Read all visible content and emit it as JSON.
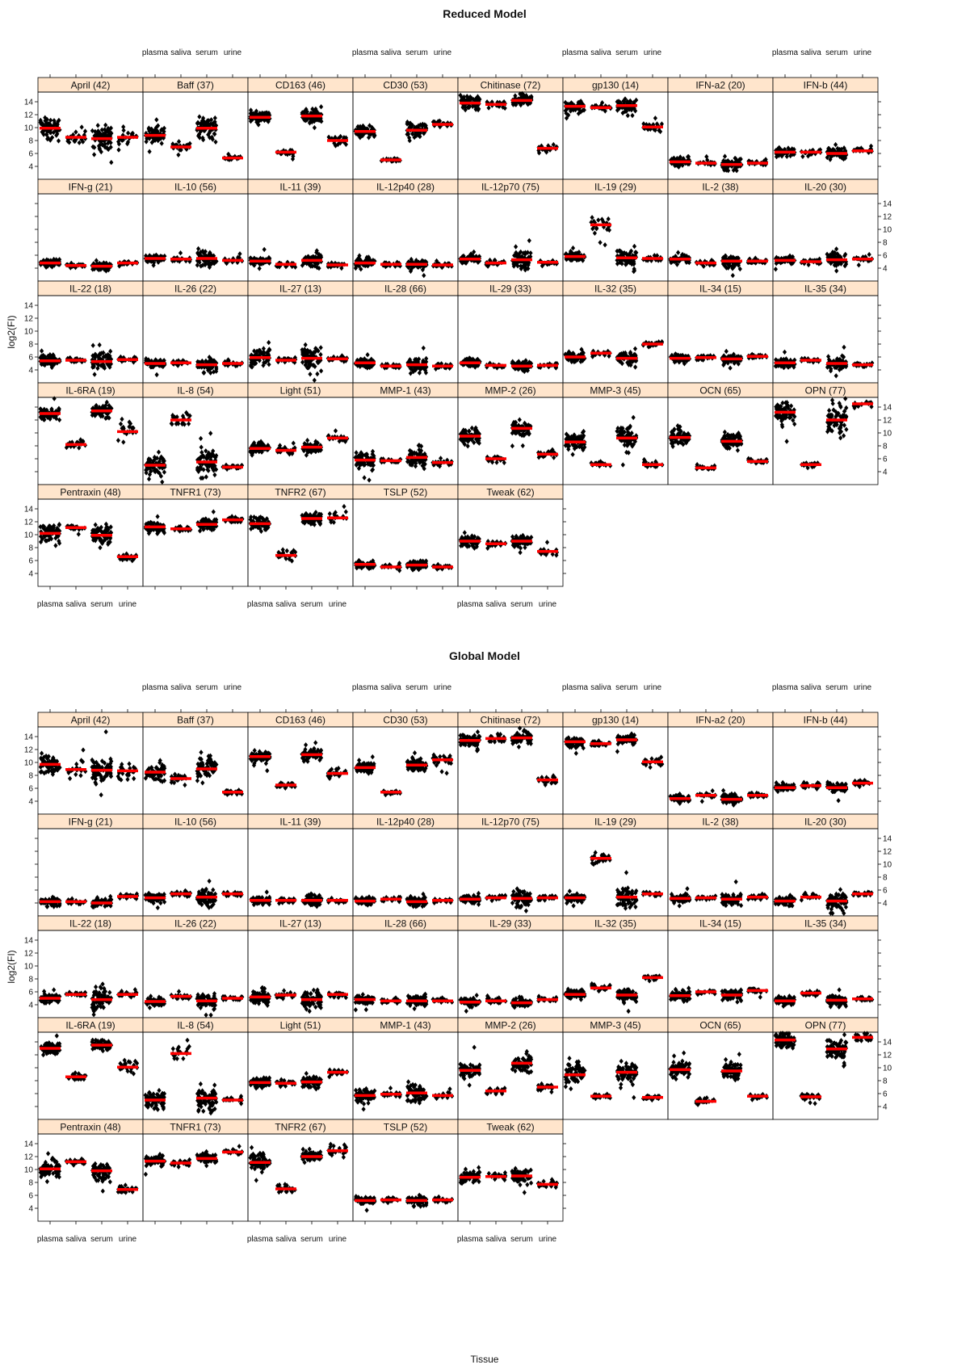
{
  "palette": {
    "strip_fill": "#ffe5cc",
    "point_color": "#000000",
    "mean_color": "#ff0000",
    "frame_color": "#000000"
  },
  "tissues": [
    "plasma",
    "saliva",
    "serum",
    "urine"
  ],
  "ylabel": "log2(FI)",
  "xlabel": "Tissue",
  "y_ticks": [
    4,
    6,
    8,
    10,
    12,
    14
  ],
  "ylim": [
    2,
    15.5
  ],
  "chart_data": [
    {
      "type": "scatter",
      "title": "Reduced Model",
      "panels": [
        {
          "label": "April (42)",
          "means": [
            9.9,
            8.5,
            8.3,
            8.5
          ],
          "spread": [
            1.8,
            1.4,
            2.4,
            1.6
          ]
        },
        {
          "label": "Baff (37)",
          "means": [
            8.8,
            7.0,
            9.9,
            5.3
          ],
          "spread": [
            1.2,
            0.8,
            1.8,
            0.4
          ]
        },
        {
          "label": "CD163 (46)",
          "means": [
            11.6,
            6.2,
            11.8,
            8.0
          ],
          "spread": [
            1.0,
            0.5,
            1.0,
            0.8
          ]
        },
        {
          "label": "CD30 (53)",
          "means": [
            9.4,
            5.0,
            9.6,
            10.5
          ],
          "spread": [
            1.0,
            0.3,
            1.0,
            0.8
          ]
        },
        {
          "label": "Chitinase (72)",
          "means": [
            13.8,
            13.6,
            14.2,
            6.8
          ],
          "spread": [
            1.2,
            0.6,
            1.0,
            0.6
          ]
        },
        {
          "label": "gp130 (14)",
          "means": [
            13.3,
            13.1,
            13.4,
            10.1
          ],
          "spread": [
            0.8,
            0.4,
            0.9,
            0.9
          ]
        },
        {
          "label": "IFN-a2 (20)",
          "means": [
            4.7,
            4.5,
            4.3,
            4.5
          ],
          "spread": [
            0.6,
            0.4,
            0.8,
            0.4
          ]
        },
        {
          "label": "IFN-b (44)",
          "means": [
            6.2,
            6.2,
            6.0,
            6.4
          ],
          "spread": [
            0.6,
            0.5,
            0.9,
            0.5
          ]
        },
        {
          "label": "IFN-g (21)",
          "means": [
            4.8,
            4.4,
            4.3,
            4.8
          ],
          "spread": [
            0.6,
            0.4,
            0.6,
            0.4
          ]
        },
        {
          "label": "IL-10 (56)",
          "means": [
            5.5,
            5.4,
            5.5,
            5.2
          ],
          "spread": [
            0.6,
            0.4,
            1.4,
            0.4
          ]
        },
        {
          "label": "IL-11 (39)",
          "means": [
            5.1,
            4.6,
            5.2,
            4.5
          ],
          "spread": [
            0.6,
            0.4,
            1.0,
            0.4
          ]
        },
        {
          "label": "IL-12p40 (28)",
          "means": [
            4.8,
            4.6,
            4.6,
            4.5
          ],
          "spread": [
            0.7,
            0.4,
            0.8,
            0.4
          ]
        },
        {
          "label": "IL-12p70 (75)",
          "means": [
            5.4,
            4.8,
            5.3,
            4.9
          ],
          "spread": [
            0.6,
            0.4,
            1.6,
            0.4
          ]
        },
        {
          "label": "IL-19 (29)",
          "means": [
            5.8,
            10.7,
            5.6,
            5.5
          ],
          "spread": [
            0.7,
            1.2,
            1.6,
            0.4
          ]
        },
        {
          "label": "IL-2 (38)",
          "means": [
            5.4,
            4.8,
            5.1,
            5.1
          ],
          "spread": [
            0.6,
            0.4,
            1.0,
            0.4
          ]
        },
        {
          "label": "IL-20 (30)",
          "means": [
            5.2,
            5.0,
            5.3,
            5.4
          ],
          "spread": [
            0.6,
            0.4,
            1.4,
            0.4
          ]
        },
        {
          "label": "IL-22 (18)",
          "means": [
            5.4,
            5.5,
            5.3,
            5.6
          ],
          "spread": [
            0.8,
            0.4,
            2.0,
            0.4
          ]
        },
        {
          "label": "IL-26 (22)",
          "means": [
            5.0,
            5.1,
            4.8,
            5.0
          ],
          "spread": [
            0.7,
            0.4,
            1.0,
            0.4
          ]
        },
        {
          "label": "IL-27 (13)",
          "means": [
            5.9,
            5.5,
            5.8,
            5.7
          ],
          "spread": [
            1.4,
            0.4,
            1.8,
            0.4
          ]
        },
        {
          "label": "IL-28 (66)",
          "means": [
            5.1,
            4.6,
            4.8,
            4.6
          ],
          "spread": [
            0.7,
            0.4,
            1.2,
            0.4
          ]
        },
        {
          "label": "IL-29 (33)",
          "means": [
            5.1,
            4.7,
            4.6,
            4.7
          ],
          "spread": [
            0.7,
            0.4,
            0.8,
            0.4
          ]
        },
        {
          "label": "IL-32 (35)",
          "means": [
            6.0,
            6.6,
            5.8,
            8.0
          ],
          "spread": [
            0.8,
            0.6,
            1.0,
            0.4
          ]
        },
        {
          "label": "IL-34 (15)",
          "means": [
            5.8,
            5.9,
            5.7,
            6.1
          ],
          "spread": [
            0.7,
            0.4,
            0.8,
            0.4
          ]
        },
        {
          "label": "IL-35 (34)",
          "means": [
            5.1,
            5.5,
            5.0,
            4.8
          ],
          "spread": [
            0.7,
            0.4,
            1.0,
            0.4
          ]
        },
        {
          "label": "IL-6RA (19)",
          "means": [
            13.0,
            8.2,
            13.4,
            10.2
          ],
          "spread": [
            0.9,
            0.6,
            0.9,
            1.2
          ]
        },
        {
          "label": "IL-8 (54)",
          "means": [
            5.0,
            12.0,
            5.5,
            4.7
          ],
          "spread": [
            1.6,
            1.6,
            2.4,
            0.4
          ]
        },
        {
          "label": "Light (51)",
          "means": [
            7.6,
            7.3,
            7.8,
            9.2
          ],
          "spread": [
            0.8,
            0.6,
            0.9,
            0.6
          ]
        },
        {
          "label": "MMP-1 (43)",
          "means": [
            5.8,
            5.7,
            6.2,
            5.4
          ],
          "spread": [
            1.2,
            0.4,
            1.6,
            0.4
          ]
        },
        {
          "label": "MMP-2 (26)",
          "means": [
            9.5,
            6.0,
            10.7,
            6.7
          ],
          "spread": [
            1.2,
            0.5,
            1.2,
            0.6
          ]
        },
        {
          "label": "MMP-3 (45)",
          "means": [
            8.6,
            5.1,
            9.2,
            5.1
          ],
          "spread": [
            1.6,
            0.4,
            1.8,
            0.4
          ]
        },
        {
          "label": "OCN (65)",
          "means": [
            9.3,
            4.6,
            8.7,
            5.6
          ],
          "spread": [
            1.4,
            0.4,
            1.4,
            0.4
          ]
        },
        {
          "label": "OPN (77)",
          "means": [
            13.2,
            5.1,
            12.0,
            14.5
          ],
          "spread": [
            1.8,
            0.4,
            2.2,
            0.6
          ]
        },
        {
          "label": "Pentraxin (48)",
          "means": [
            10.2,
            11.1,
            9.9,
            6.6
          ],
          "spread": [
            1.4,
            0.4,
            1.4,
            0.6
          ]
        },
        {
          "label": "TNFR1 (73)",
          "means": [
            11.2,
            10.9,
            11.6,
            12.3
          ],
          "spread": [
            0.9,
            0.5,
            0.9,
            0.5
          ]
        },
        {
          "label": "TNFR2 (67)",
          "means": [
            11.7,
            6.8,
            12.5,
            12.6
          ],
          "spread": [
            1.2,
            1.0,
            0.9,
            1.2
          ]
        },
        {
          "label": "TSLP (52)",
          "means": [
            5.4,
            5.0,
            5.3,
            5.0
          ],
          "spread": [
            0.6,
            0.4,
            0.7,
            0.4
          ]
        },
        {
          "label": "Tweak (62)",
          "means": [
            9.0,
            8.6,
            9.0,
            7.4
          ],
          "spread": [
            0.9,
            0.6,
            1.0,
            0.6
          ]
        }
      ]
    },
    {
      "type": "scatter",
      "title": "Global Model",
      "panels": [
        {
          "label": "April (42)",
          "means": [
            9.7,
            8.9,
            8.8,
            8.7
          ],
          "spread": [
            1.6,
            1.2,
            2.0,
            1.4
          ]
        },
        {
          "label": "Baff (37)",
          "means": [
            8.5,
            7.5,
            9.0,
            5.4
          ],
          "spread": [
            1.2,
            0.8,
            1.6,
            0.4
          ]
        },
        {
          "label": "CD163 (46)",
          "means": [
            10.9,
            6.5,
            11.2,
            8.3
          ],
          "spread": [
            1.0,
            0.5,
            1.0,
            0.6
          ]
        },
        {
          "label": "CD30 (53)",
          "means": [
            9.2,
            5.4,
            9.6,
            10.4
          ],
          "spread": [
            0.9,
            0.3,
            1.0,
            0.8
          ]
        },
        {
          "label": "Chitinase (72)",
          "means": [
            13.4,
            13.7,
            13.8,
            7.3
          ],
          "spread": [
            1.2,
            0.6,
            1.0,
            0.6
          ]
        },
        {
          "label": "gp130 (14)",
          "means": [
            13.2,
            12.9,
            13.5,
            10.1
          ],
          "spread": [
            0.8,
            0.4,
            0.8,
            0.7
          ]
        },
        {
          "label": "IFN-a2 (20)",
          "means": [
            4.4,
            4.9,
            4.3,
            4.9
          ],
          "spread": [
            0.6,
            0.4,
            0.7,
            0.4
          ]
        },
        {
          "label": "IFN-b (44)",
          "means": [
            6.1,
            6.4,
            6.1,
            6.8
          ],
          "spread": [
            0.6,
            0.5,
            0.8,
            0.5
          ]
        },
        {
          "label": "IFN-g (21)",
          "means": [
            4.2,
            4.2,
            4.0,
            5.0
          ],
          "spread": [
            0.6,
            0.4,
            0.6,
            0.4
          ]
        },
        {
          "label": "IL-10 (56)",
          "means": [
            4.8,
            5.4,
            4.9,
            5.4
          ],
          "spread": [
            0.6,
            0.4,
            1.4,
            0.4
          ]
        },
        {
          "label": "IL-11 (39)",
          "means": [
            4.4,
            4.4,
            4.4,
            4.4
          ],
          "spread": [
            0.6,
            0.4,
            1.0,
            0.4
          ]
        },
        {
          "label": "IL-12p40 (28)",
          "means": [
            4.3,
            4.6,
            4.2,
            4.4
          ],
          "spread": [
            0.6,
            0.4,
            0.8,
            0.4
          ]
        },
        {
          "label": "IL-12p70 (75)",
          "means": [
            4.6,
            4.8,
            4.7,
            4.8
          ],
          "spread": [
            0.6,
            0.4,
            1.6,
            0.4
          ]
        },
        {
          "label": "IL-19 (29)",
          "means": [
            4.8,
            10.9,
            4.9,
            5.4
          ],
          "spread": [
            0.7,
            1.2,
            1.6,
            0.4
          ]
        },
        {
          "label": "IL-2 (38)",
          "means": [
            4.7,
            4.8,
            4.6,
            4.9
          ],
          "spread": [
            0.6,
            0.4,
            0.9,
            0.4
          ]
        },
        {
          "label": "IL-20 (30)",
          "means": [
            4.3,
            4.9,
            4.3,
            5.4
          ],
          "spread": [
            0.6,
            0.4,
            1.4,
            0.4
          ]
        },
        {
          "label": "IL-22 (18)",
          "means": [
            5.0,
            5.6,
            4.8,
            5.6
          ],
          "spread": [
            0.7,
            0.4,
            1.8,
            0.4
          ]
        },
        {
          "label": "IL-26 (22)",
          "means": [
            4.5,
            5.3,
            4.6,
            5.0
          ],
          "spread": [
            0.7,
            0.4,
            1.0,
            0.4
          ]
        },
        {
          "label": "IL-27 (13)",
          "means": [
            5.2,
            5.5,
            4.8,
            5.6
          ],
          "spread": [
            1.2,
            0.4,
            1.4,
            0.4
          ]
        },
        {
          "label": "IL-28 (66)",
          "means": [
            4.8,
            4.6,
            4.6,
            4.6
          ],
          "spread": [
            0.7,
            0.4,
            1.0,
            0.4
          ]
        },
        {
          "label": "IL-29 (33)",
          "means": [
            4.4,
            4.6,
            4.3,
            4.8
          ],
          "spread": [
            0.6,
            0.4,
            0.7,
            0.4
          ]
        },
        {
          "label": "IL-32 (35)",
          "means": [
            5.6,
            6.6,
            5.5,
            8.2
          ],
          "spread": [
            0.8,
            0.6,
            1.0,
            0.4
          ]
        },
        {
          "label": "IL-34 (15)",
          "means": [
            5.4,
            6.0,
            5.5,
            6.2
          ],
          "spread": [
            0.7,
            0.4,
            0.8,
            0.4
          ]
        },
        {
          "label": "IL-35 (34)",
          "means": [
            4.6,
            5.8,
            4.7,
            4.9
          ],
          "spread": [
            0.6,
            0.4,
            0.9,
            0.4
          ]
        },
        {
          "label": "IL-6RA (19)",
          "means": [
            13.0,
            8.6,
            13.5,
            10.1
          ],
          "spread": [
            0.9,
            0.6,
            0.9,
            1.2
          ]
        },
        {
          "label": "IL-8 (54)",
          "means": [
            5.0,
            12.2,
            5.3,
            5.0
          ],
          "spread": [
            1.4,
            1.4,
            2.2,
            0.4
          ]
        },
        {
          "label": "Light (51)",
          "means": [
            7.7,
            7.6,
            7.8,
            9.3
          ],
          "spread": [
            0.8,
            0.6,
            0.9,
            0.6
          ]
        },
        {
          "label": "MMP-1 (43)",
          "means": [
            5.7,
            5.9,
            6.1,
            5.7
          ],
          "spread": [
            1.2,
            0.4,
            1.6,
            0.4
          ]
        },
        {
          "label": "MMP-2 (26)",
          "means": [
            9.6,
            6.4,
            10.7,
            7.0
          ],
          "spread": [
            1.2,
            0.5,
            1.2,
            0.6
          ]
        },
        {
          "label": "MMP-3 (45)",
          "means": [
            8.9,
            5.6,
            9.3,
            5.4
          ],
          "spread": [
            1.6,
            0.4,
            1.8,
            0.4
          ]
        },
        {
          "label": "OCN (65)",
          "means": [
            9.7,
            4.8,
            9.5,
            5.6
          ],
          "spread": [
            1.4,
            0.4,
            1.4,
            0.4
          ]
        },
        {
          "label": "OPN (77)",
          "means": [
            14.3,
            5.5,
            12.9,
            14.7
          ],
          "spread": [
            1.4,
            0.4,
            2.0,
            0.6
          ]
        },
        {
          "label": "Pentraxin (48)",
          "means": [
            10.1,
            11.2,
            9.8,
            6.9
          ],
          "spread": [
            1.4,
            0.4,
            1.4,
            0.6
          ]
        },
        {
          "label": "TNFR1 (73)",
          "means": [
            11.3,
            11.0,
            11.7,
            12.7
          ],
          "spread": [
            0.9,
            0.5,
            0.9,
            0.5
          ]
        },
        {
          "label": "TNFR2 (67)",
          "means": [
            11.1,
            7.0,
            12.0,
            12.9
          ],
          "spread": [
            1.2,
            0.8,
            0.9,
            1.0
          ]
        },
        {
          "label": "TSLP (52)",
          "means": [
            5.2,
            5.3,
            5.2,
            5.3
          ],
          "spread": [
            0.6,
            0.4,
            0.7,
            0.4
          ]
        },
        {
          "label": "Tweak (62)",
          "means": [
            8.8,
            8.9,
            9.0,
            7.7
          ],
          "spread": [
            0.9,
            0.6,
            1.0,
            0.6
          ]
        }
      ]
    }
  ]
}
